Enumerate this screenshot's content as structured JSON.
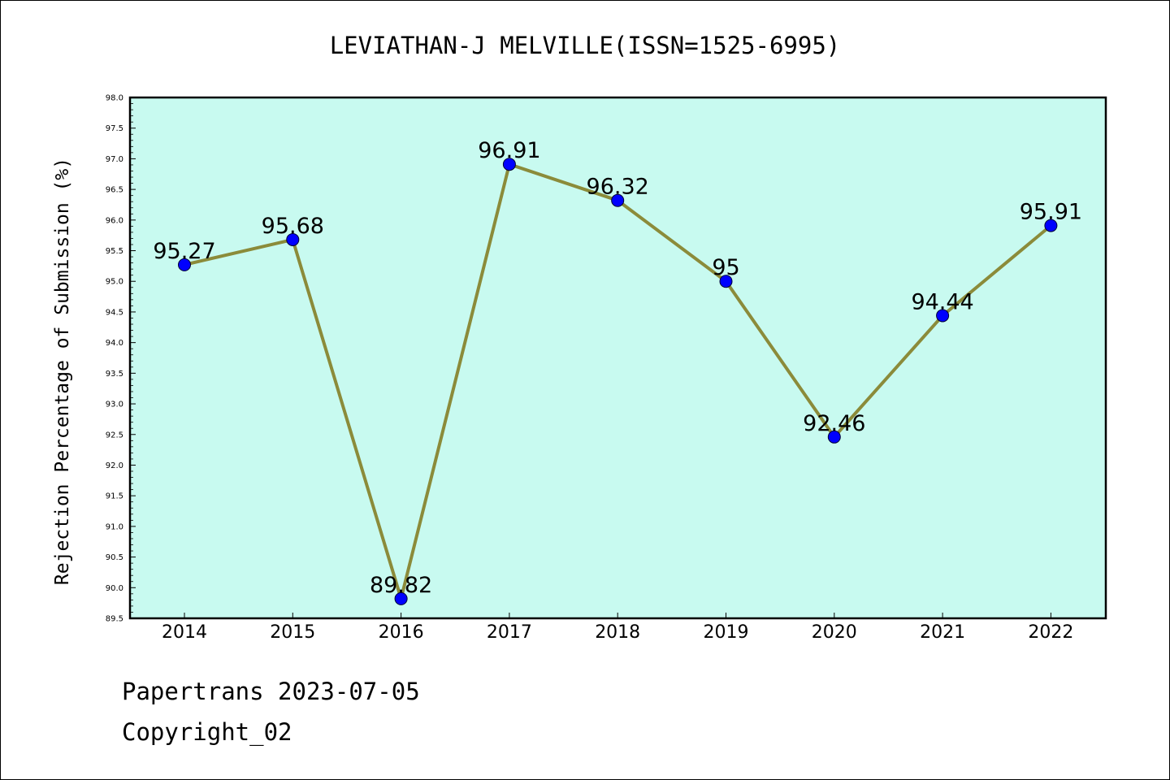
{
  "chart_data": {
    "type": "line",
    "title": "LEVIATHAN-J MELVILLE(ISSN=1525-6995)",
    "xlabel": "",
    "ylabel": "Rejection Percentage of Submission (%)",
    "categories": [
      "2014",
      "2015",
      "2016",
      "2017",
      "2018",
      "2019",
      "2020",
      "2021",
      "2022"
    ],
    "series": [
      {
        "values": [
          95.27,
          95.68,
          89.82,
          96.91,
          96.32,
          95,
          92.46,
          94.44,
          95.91
        ],
        "labels": [
          "95.27",
          "95.68",
          "89.82",
          "96.91",
          "96.32",
          "95",
          "92.46",
          "94.44",
          "95.91"
        ],
        "line_color": "#8B8B3A",
        "marker_color": "#0000FF"
      }
    ],
    "ylim": [
      89.5,
      98.0
    ],
    "yticks": [
      "89.5",
      "90.0",
      "90.5",
      "91.0",
      "91.5",
      "92.0",
      "92.5",
      "93.0",
      "93.5",
      "94.0",
      "94.5",
      "95.0",
      "95.5",
      "96.0",
      "96.5",
      "97.0",
      "97.5",
      "98.0"
    ],
    "plot_background": "#C8FAF0",
    "grid": false,
    "legend": "none"
  },
  "footer": {
    "line1": "Papertrans 2023-07-05",
    "line2": "Copyright_02"
  }
}
